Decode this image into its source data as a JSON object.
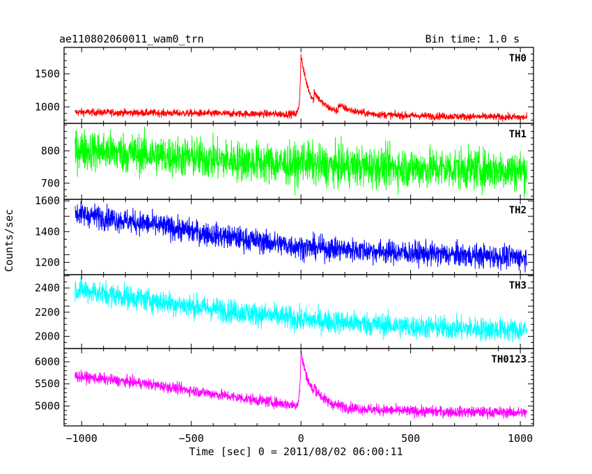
{
  "header": {
    "title": "ae110802060011_wam0_trn",
    "bin_time": "Bin time: 1.0 s"
  },
  "chart_data": {
    "type": "line",
    "xlabel": "Time [sec] 0 = 2011/08/02 06:00:11",
    "ylabel": "Counts/sec",
    "xlim": [
      -1080,
      1060
    ],
    "x_ticks": [
      -1000,
      -500,
      0,
      500,
      1000
    ],
    "x_tick_labels": [
      "−1000",
      "−500",
      "0",
      "500",
      "1000"
    ],
    "panels": [
      {
        "name": "TH0",
        "color": "#ff0000",
        "ylim": [
          750,
          1900
        ],
        "y_ticks": [
          1000,
          1500
        ],
        "minor_step": 100,
        "noise": 40,
        "trend": [
          [
            -1030,
            920
          ],
          [
            -400,
            900
          ],
          [
            -30,
            890
          ],
          [
            1030,
            840
          ]
        ],
        "bumps": [
          [
            0,
            900,
            5,
            40
          ],
          [
            60,
            160,
            0,
            80
          ],
          [
            170,
            100,
            0,
            80
          ]
        ]
      },
      {
        "name": "TH1",
        "color": "#00ff00",
        "ylim": [
          650,
          885
        ],
        "y_ticks": [
          700,
          800
        ],
        "minor_step": 20,
        "noise": 45,
        "trend": [
          [
            -1030,
            805
          ],
          [
            0,
            755
          ],
          [
            1030,
            740
          ]
        ],
        "bumps": [
          [
            0,
            25,
            0,
            30
          ]
        ]
      },
      {
        "name": "TH2",
        "color": "#0000ff",
        "ylim": [
          1120,
          1610
        ],
        "y_ticks": [
          1200,
          1400,
          1600
        ],
        "minor_step": 50,
        "noise": 55,
        "trend": [
          [
            -1030,
            1520
          ],
          [
            -700,
            1450
          ],
          [
            -400,
            1380
          ],
          [
            0,
            1300
          ],
          [
            500,
            1260
          ],
          [
            1030,
            1230
          ]
        ],
        "bumps": []
      },
      {
        "name": "TH3",
        "color": "#00ffff",
        "ylim": [
          1900,
          2510
        ],
        "y_ticks": [
          2000,
          2200,
          2400
        ],
        "minor_step": 50,
        "noise": 70,
        "trend": [
          [
            -1030,
            2390
          ],
          [
            -500,
            2250
          ],
          [
            0,
            2140
          ],
          [
            500,
            2080
          ],
          [
            1030,
            2050
          ]
        ],
        "bumps": []
      },
      {
        "name": "TH0123",
        "color": "#ff00ff",
        "ylim": [
          4550,
          6300
        ],
        "y_ticks": [
          5000,
          5500,
          6000
        ],
        "minor_step": 100,
        "noise": 90,
        "trend": [
          [
            -1030,
            5680
          ],
          [
            -700,
            5500
          ],
          [
            -300,
            5200
          ],
          [
            -30,
            5020
          ],
          [
            200,
            4950
          ],
          [
            500,
            4880
          ],
          [
            1030,
            4850
          ]
        ],
        "bumps": [
          [
            0,
            1200,
            5,
            45
          ],
          [
            60,
            150,
            0,
            60
          ]
        ]
      }
    ]
  }
}
